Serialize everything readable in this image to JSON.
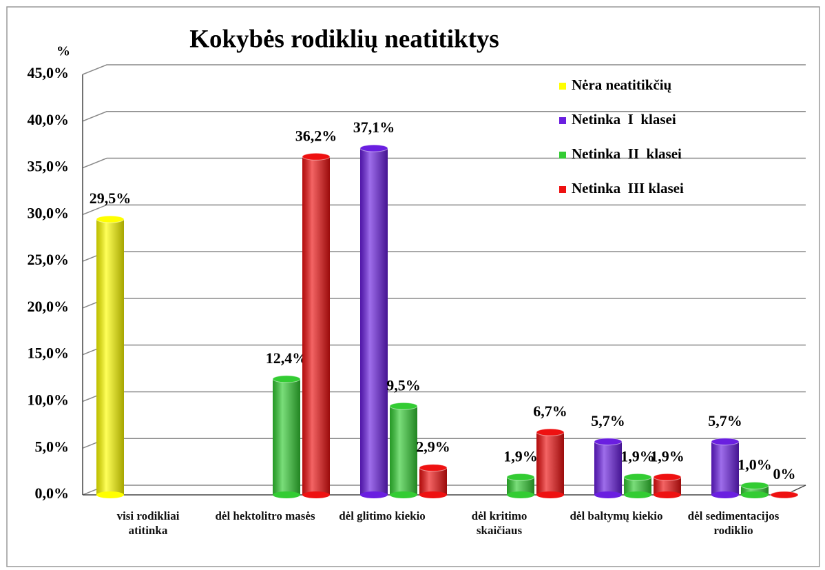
{
  "chart_data": {
    "type": "bar",
    "title": "Kokybės rodiklių neatitiktys",
    "y_label": "%",
    "categories": [
      "visi rodikliai atitinka",
      "dėl hektolitro masės",
      "dėl glitimo kiekio",
      "dėl kritimo skaičiaus",
      "dėl baltymų kiekio",
      "dėl sedimentacijos rodiklio"
    ],
    "series": [
      {
        "name": "Nėra neatitikčių",
        "color": "#ffff00",
        "values": [
          29.5,
          null,
          null,
          null,
          null,
          null
        ],
        "value_labels": [
          "29,5%",
          null,
          null,
          null,
          null,
          null
        ]
      },
      {
        "name": "Netinka  I  klasei",
        "color": "#6a1fe0",
        "values": [
          null,
          null,
          37.1,
          null,
          5.7,
          5.7
        ],
        "value_labels": [
          null,
          null,
          "37,1%",
          null,
          "5,7%",
          "5,7%"
        ]
      },
      {
        "name": "Netinka  II  klasei",
        "color": "#33cc33",
        "values": [
          null,
          12.4,
          9.5,
          1.9,
          1.9,
          1.0
        ],
        "value_labels": [
          null,
          "12,4%",
          "9,5%",
          "1,9%",
          "1,9%",
          "1,0%"
        ]
      },
      {
        "name": "Netinka  III klasei",
        "color": "#ee1111",
        "values": [
          null,
          36.2,
          2.9,
          6.7,
          1.9,
          0
        ],
        "value_labels": [
          null,
          "36,2%",
          "2,9%",
          "6,7%",
          "1,9%",
          "0%"
        ]
      }
    ],
    "ylim": [
      0,
      45
    ],
    "yticks": [
      {
        "value": 0,
        "label": "0,0%"
      },
      {
        "value": 5,
        "label": "5,0%"
      },
      {
        "value": 10,
        "label": "10,0%"
      },
      {
        "value": 15,
        "label": "15,0%"
      },
      {
        "value": 20,
        "label": "20,0%"
      },
      {
        "value": 25,
        "label": "25,0%"
      },
      {
        "value": 30,
        "label": "30,0%"
      },
      {
        "value": 35,
        "label": "35,0%"
      },
      {
        "value": 40,
        "label": "40,0%"
      },
      {
        "value": 45,
        "label": "45,0%"
      }
    ],
    "grid": true,
    "legend": "upper right"
  }
}
